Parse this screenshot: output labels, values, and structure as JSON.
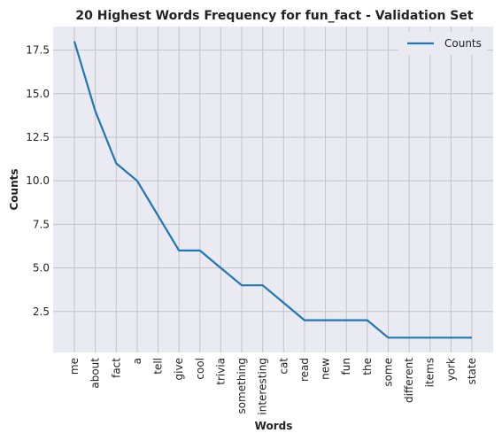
{
  "chart_data": {
    "type": "line",
    "title": "20 Highest Words Frequency for fun_fact - Validation Set",
    "xlabel": "Words",
    "ylabel": "Counts",
    "categories": [
      "me",
      "about",
      "fact",
      "a",
      "tell",
      "give",
      "cool",
      "trivia",
      "something",
      "interesting",
      "cat",
      "read",
      "new",
      "fun",
      "the",
      "some",
      "different",
      "items",
      "york",
      "state"
    ],
    "series": [
      {
        "name": "Counts",
        "values": [
          18,
          14,
          11,
          10,
          8,
          6,
          6,
          5,
          4,
          4,
          3,
          2,
          2,
          2,
          2,
          1,
          1,
          1,
          1,
          1
        ]
      }
    ],
    "yticks": [
      "2.5",
      "5.0",
      "7.5",
      "10.0",
      "12.5",
      "15.0",
      "17.5"
    ],
    "ylim": [
      0.15,
      18.85
    ],
    "grid": true,
    "legend": "top-right",
    "colors": {
      "line": "#1f77b4",
      "plot_bg": "#eaeaf2",
      "grid": "#c4c4c4"
    }
  }
}
